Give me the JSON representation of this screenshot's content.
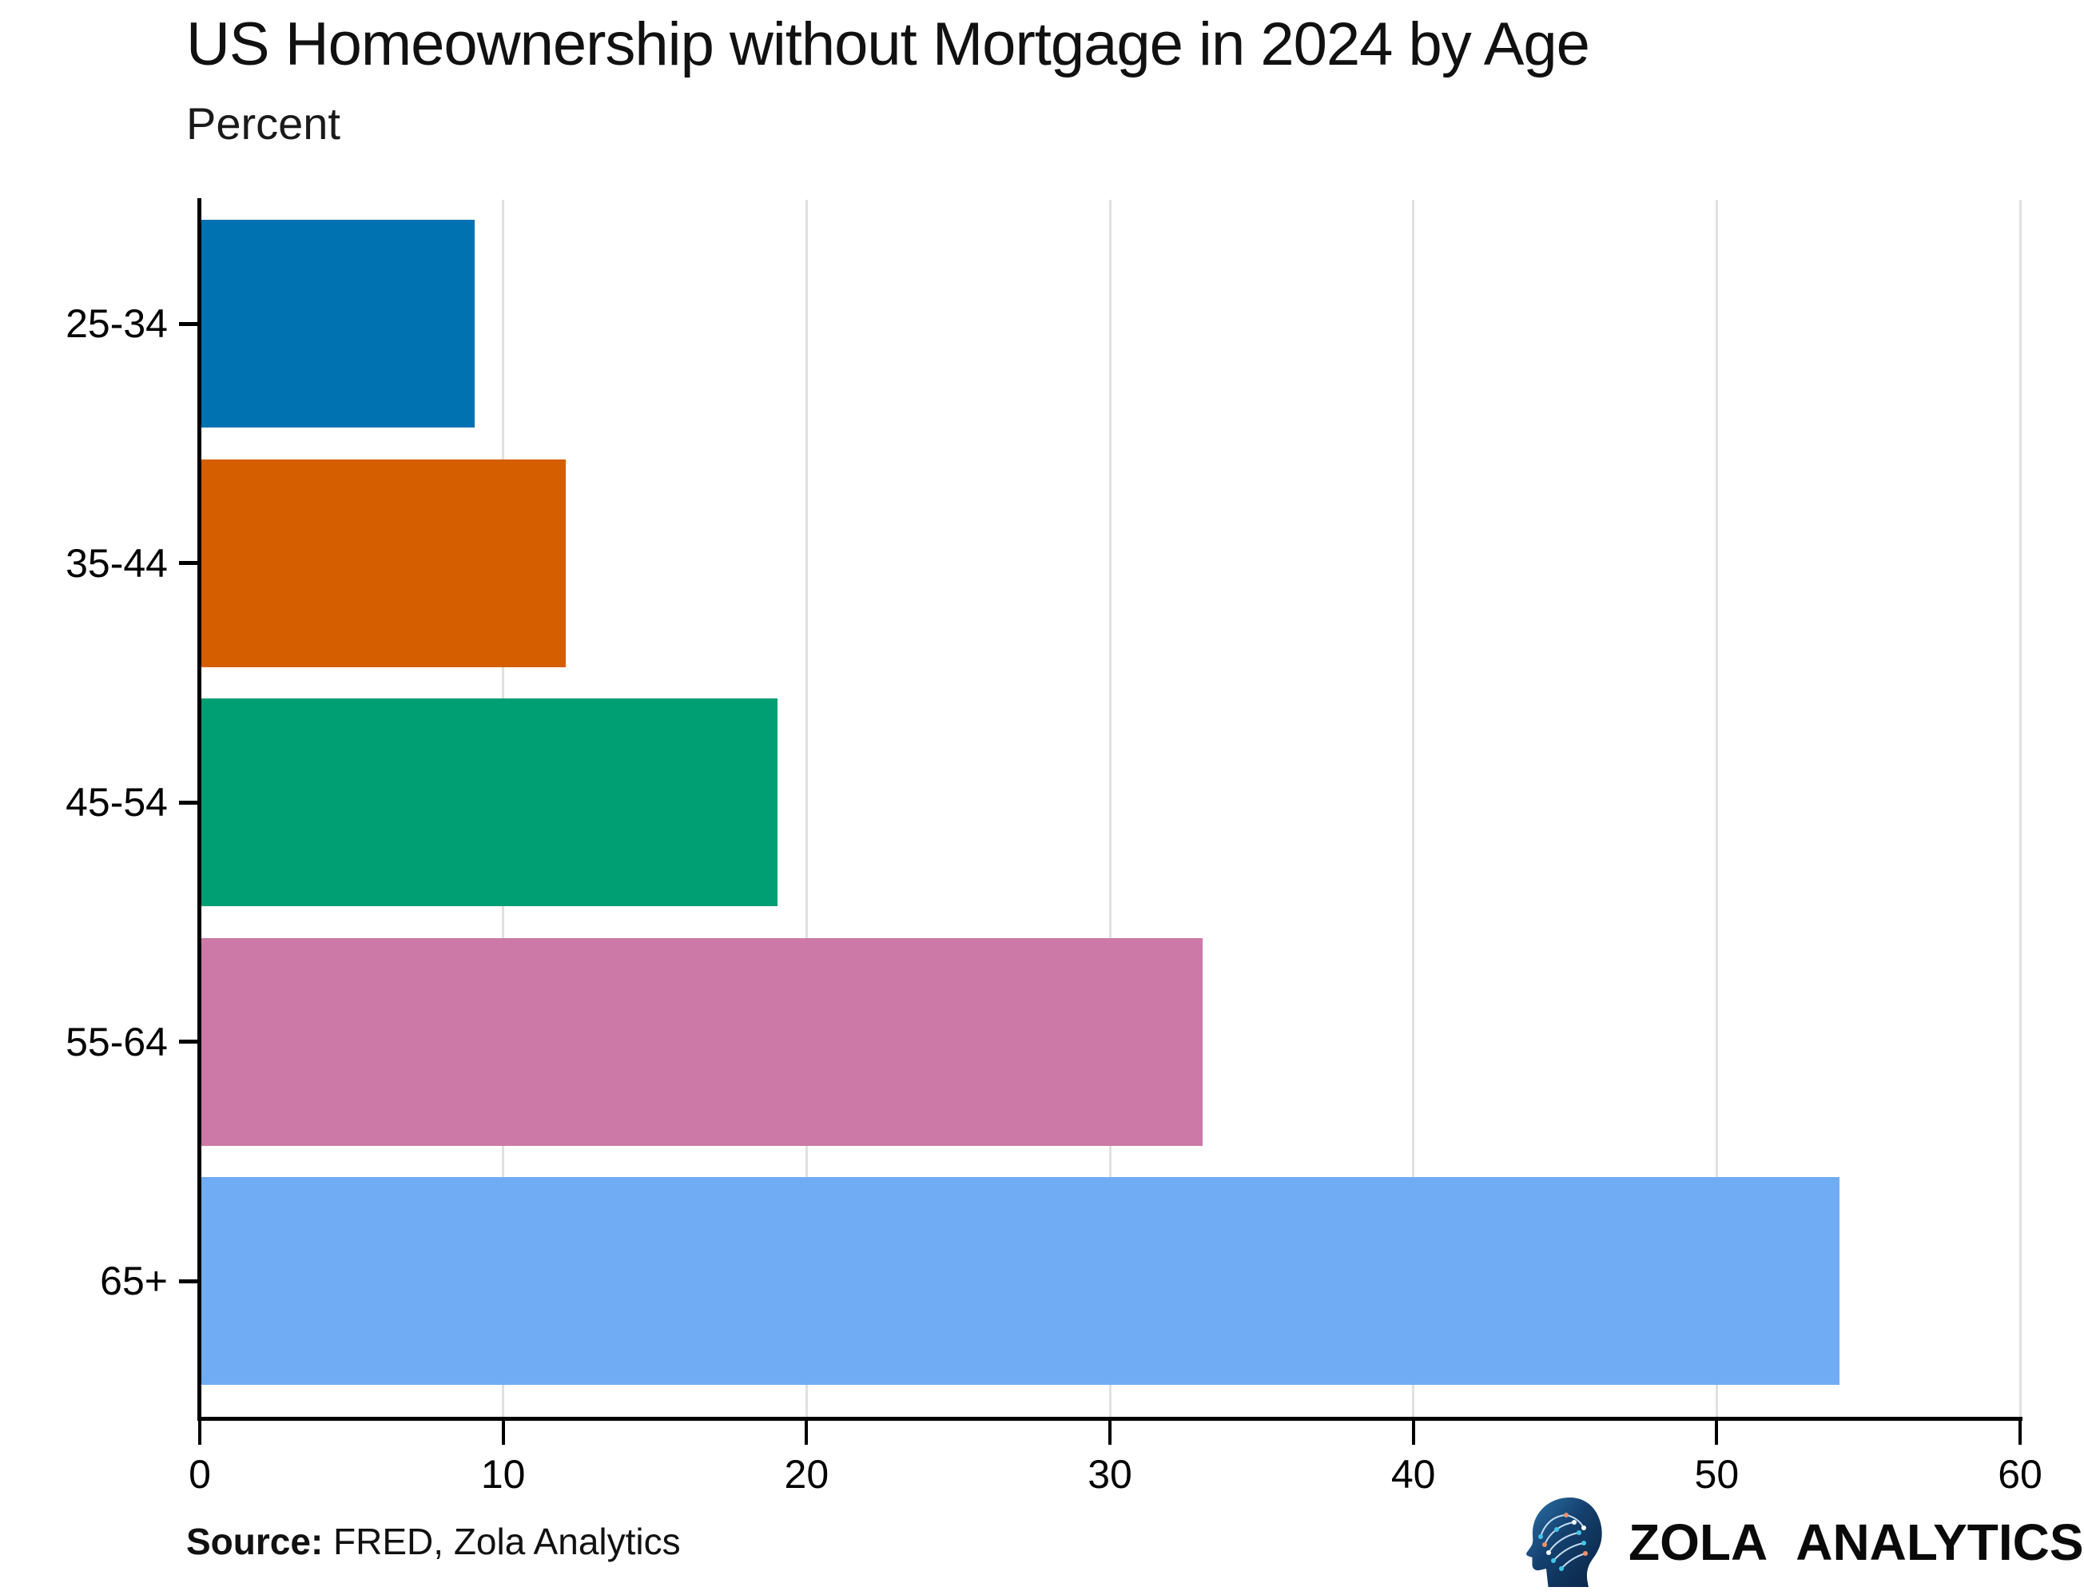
{
  "title": "US Homeownership without Mortgage in 2024 by Age",
  "subtitle": "Percent",
  "source": {
    "label": "Source:",
    "text": " FRED, Zola Analytics"
  },
  "branding": {
    "name": "ZOLA ANALYTICS",
    "icon": "circuit-head-icon"
  },
  "chart_data": {
    "type": "bar",
    "orientation": "horizontal",
    "title": "US Homeownership without Mortgage in 2024 by Age",
    "xlabel": "",
    "ylabel": "Percent",
    "categories": [
      "25-34",
      "35-44",
      "45-54",
      "55-64",
      "65+"
    ],
    "values": [
      9,
      12,
      19,
      33,
      54
    ],
    "bar_colors": [
      "#0072B1",
      "#D55E00",
      "#009E73",
      "#CC79A7",
      "#6FACF4"
    ],
    "xlim": [
      0,
      60
    ],
    "x_ticks": [
      0,
      10,
      20,
      30,
      40,
      50,
      60
    ],
    "grid": "vertical-gridlines",
    "gridline_color": "#e0e0e0",
    "legend": "none"
  }
}
